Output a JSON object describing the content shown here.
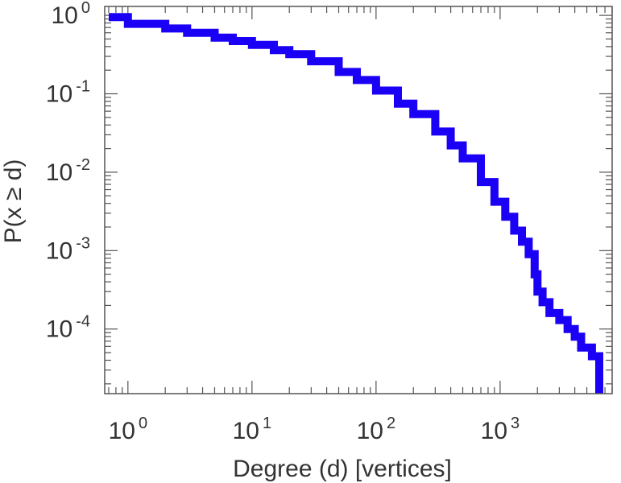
{
  "chart_data": {
    "type": "line",
    "title": "",
    "xlabel": "Degree (d) [vertices]",
    "ylabel": "P(x ≥ d)",
    "xscale": "log",
    "yscale": "log",
    "xlim": [
      0.65,
      8000
    ],
    "ylim": [
      1.5e-05,
      1.3
    ],
    "grid": false,
    "legend": "none",
    "series_color": "#1a00f5",
    "x_ticks": [
      {
        "value": 1,
        "base": "10",
        "exp": "0"
      },
      {
        "value": 10,
        "base": "10",
        "exp": "1"
      },
      {
        "value": 100,
        "base": "10",
        "exp": "2"
      },
      {
        "value": 1000,
        "base": "10",
        "exp": "3"
      }
    ],
    "y_ticks": [
      {
        "value": 1,
        "base": "10",
        "exp": "0"
      },
      {
        "value": 0.1,
        "base": "10",
        "exp": "-1"
      },
      {
        "value": 0.01,
        "base": "10",
        "exp": "-2"
      },
      {
        "value": 0.001,
        "base": "10",
        "exp": "-3"
      },
      {
        "value": 0.0001,
        "base": "10",
        "exp": "-4"
      }
    ],
    "series": [
      {
        "x": [
          0.7,
          1,
          2,
          3,
          5,
          7,
          10,
          15,
          20,
          30,
          50,
          70,
          100,
          150,
          200,
          300,
          400,
          500,
          700,
          900,
          1100,
          1300,
          1500,
          1700,
          1900,
          2000,
          2200,
          2500,
          3000,
          3500,
          4000,
          4500,
          5500,
          6000,
          6300
        ],
        "y": [
          0.95,
          0.78,
          0.68,
          0.6,
          0.52,
          0.47,
          0.42,
          0.36,
          0.32,
          0.26,
          0.19,
          0.15,
          0.11,
          0.075,
          0.055,
          0.033,
          0.022,
          0.015,
          0.0075,
          0.0042,
          0.0027,
          0.0018,
          0.0013,
          0.0009,
          0.0005,
          0.0003,
          0.00022,
          0.00016,
          0.00013,
          0.0001,
          8e-05,
          5.8e-05,
          4.5e-05,
          4.5e-05,
          1.65e-05
        ]
      }
    ]
  }
}
